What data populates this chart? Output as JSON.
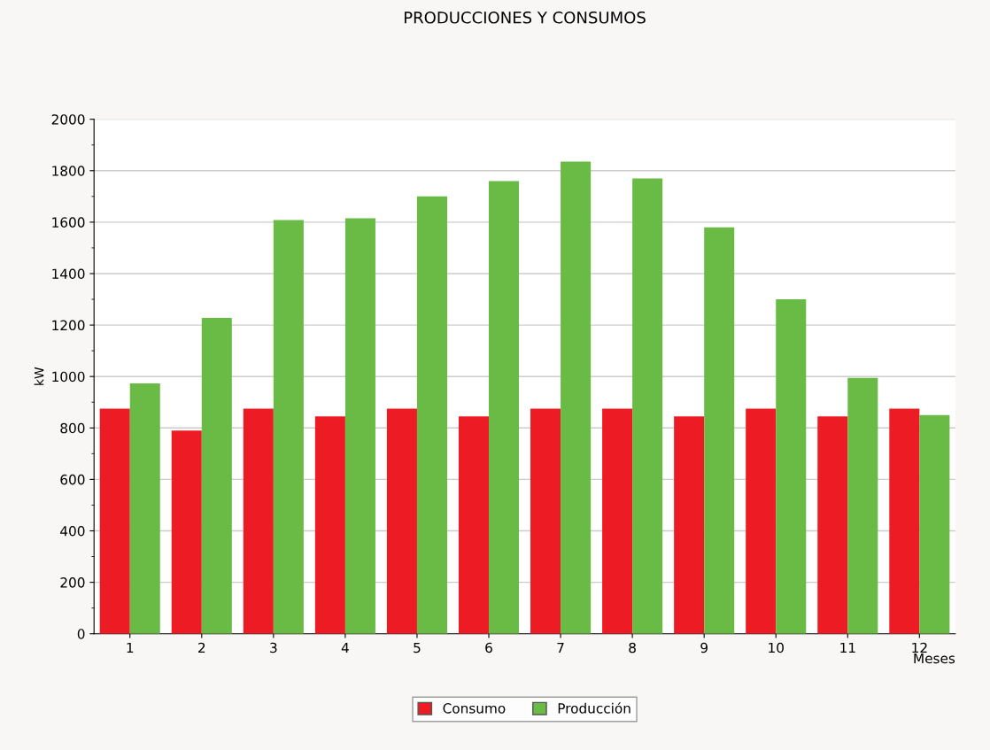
{
  "chart_data": {
    "type": "bar",
    "title": "PRODUCCIONES Y CONSUMOS",
    "xlabel": "Meses",
    "ylabel": "kW",
    "categories": [
      "1",
      "2",
      "3",
      "4",
      "5",
      "6",
      "7",
      "8",
      "9",
      "10",
      "11",
      "12"
    ],
    "series": [
      {
        "name": "Consumo",
        "color": "#ed1c24",
        "values": [
          875,
          790,
          875,
          845,
          875,
          845,
          875,
          875,
          845,
          875,
          845,
          875
        ]
      },
      {
        "name": "Producción",
        "color": "#6abb45",
        "values": [
          973,
          1228,
          1608,
          1615,
          1700,
          1760,
          1835,
          1770,
          1580,
          1300,
          995,
          850
        ]
      }
    ],
    "ylim": [
      0,
      2000
    ],
    "yticks": [
      0,
      200,
      400,
      600,
      800,
      1000,
      1200,
      1400,
      1600,
      1800,
      2000
    ],
    "grid": "y",
    "legend": "bottom"
  }
}
